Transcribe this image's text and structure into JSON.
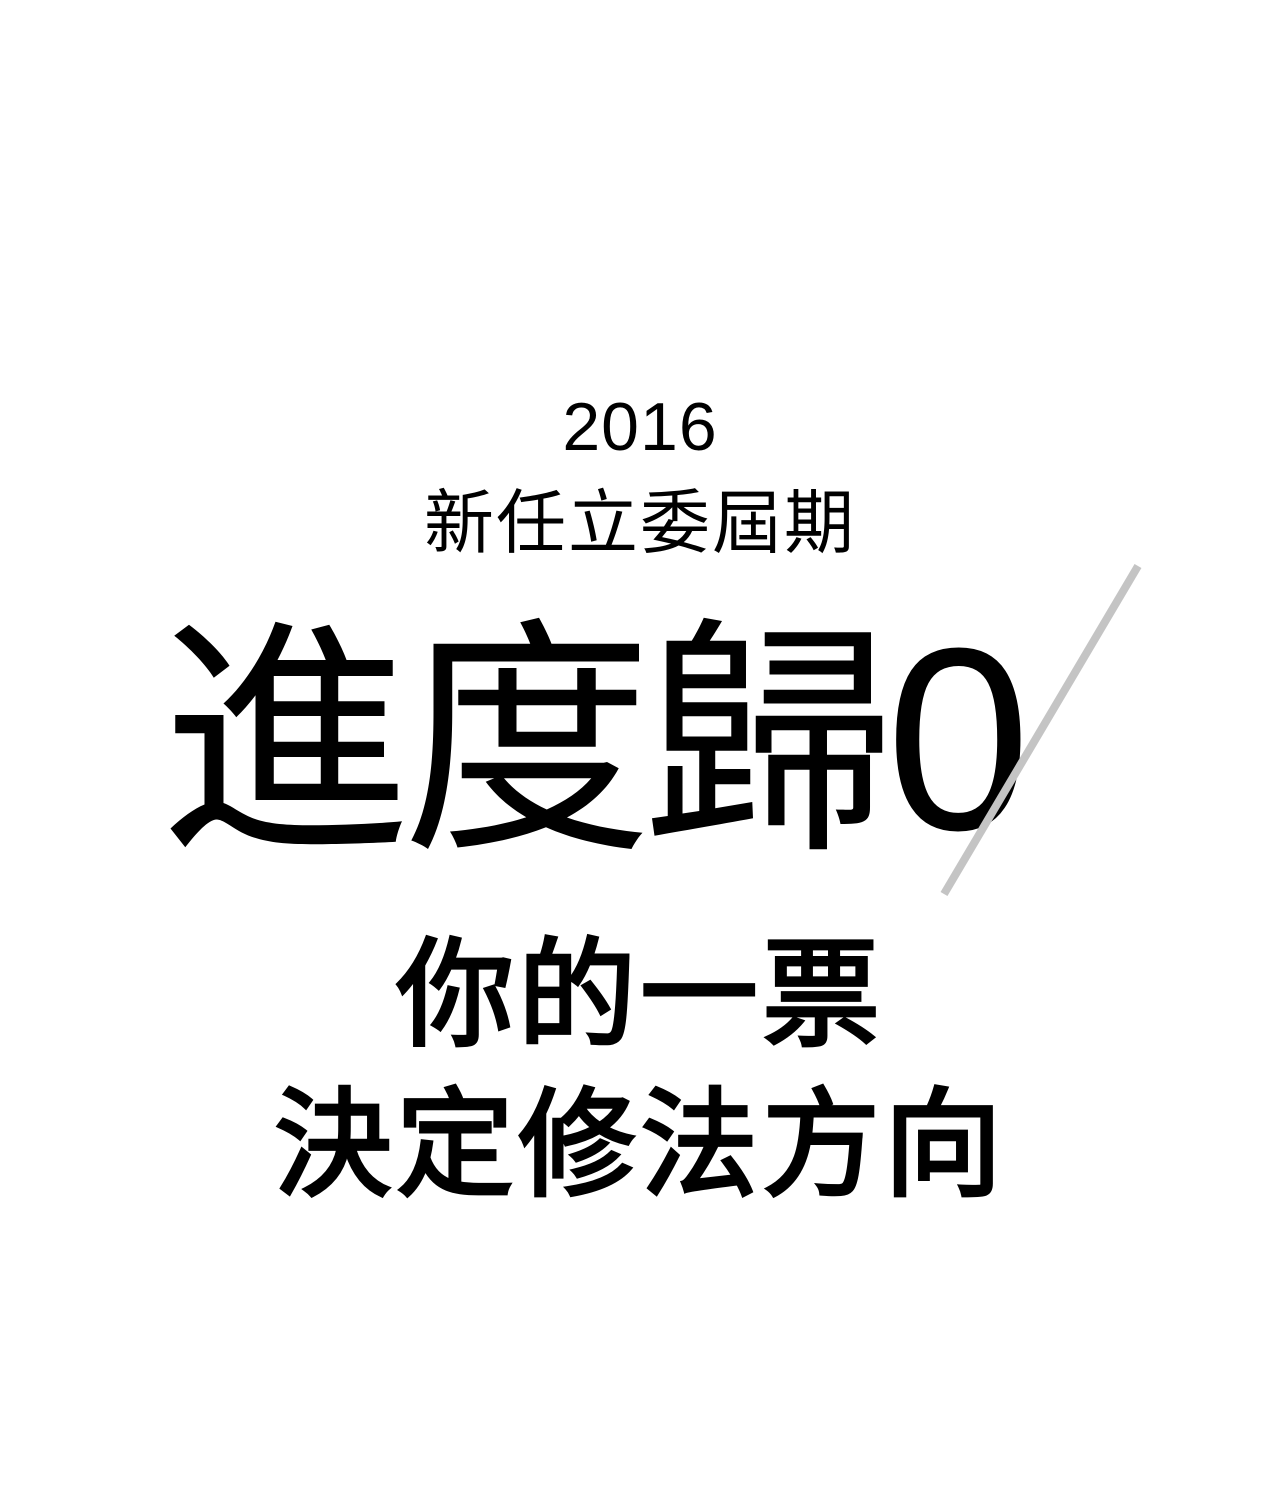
{
  "poster": {
    "year": "2016",
    "subtitle": "新任立委屆期",
    "headline": "進度歸",
    "headline_zero": "0",
    "tagline_line1": "你的一票",
    "tagline_line2": "決定修法方向"
  },
  "colors": {
    "background": "#ffffff",
    "text": "#000000",
    "slash": "#c4c4c4"
  }
}
